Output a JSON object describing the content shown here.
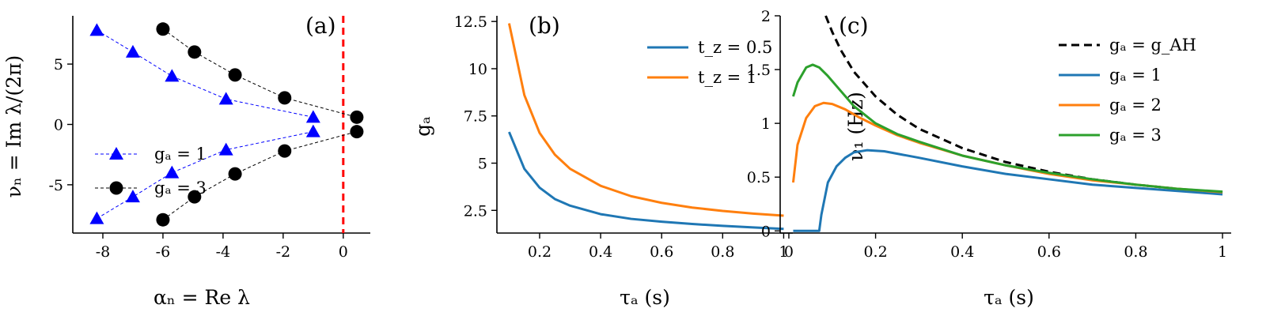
{
  "chart_data": [
    {
      "panel": "(a)",
      "type": "scatter",
      "xlabel": "αₙ = Re λ",
      "ylabel": "νₙ = Im λ/(2π)",
      "xlim": [
        -9,
        0.9
      ],
      "ylim": [
        -9,
        9
      ],
      "xticks": [
        -8,
        -6,
        -4,
        -2,
        0
      ],
      "xtick_labels": [
        "-8",
        "-6",
        "-4",
        "-2",
        "0"
      ],
      "yticks": [
        -5,
        0,
        5
      ],
      "ytick_labels": [
        "-5",
        "0",
        "5"
      ],
      "vline": {
        "x": 0,
        "color": "#ff0000",
        "style": "dashed"
      },
      "legend_position": "center-left",
      "series": [
        {
          "name": "gₐ = 1",
          "marker": "triangle",
          "color": "#0000ff",
          "linestyle": "dashed",
          "branches": [
            {
              "x": [
                -8.2,
                -7.0,
                -5.7,
                -3.9,
                -1.0
              ],
              "y": [
                7.8,
                6.0,
                4.0,
                2.1,
                0.6
              ]
            },
            {
              "x": [
                -8.2,
                -7.0,
                -5.7,
                -3.9,
                -1.0
              ],
              "y": [
                -7.8,
                -6.0,
                -4.0,
                -2.1,
                -0.6
              ]
            }
          ]
        },
        {
          "name": "gₐ = 3",
          "marker": "circle",
          "color": "#000000",
          "linestyle": "dashed",
          "branches": [
            {
              "x": [
                -6.0,
                -4.95,
                -3.6,
                -1.95,
                0.45
              ],
              "y": [
                7.9,
                6.0,
                4.1,
                2.2,
                0.6
              ]
            },
            {
              "x": [
                -6.0,
                -4.95,
                -3.6,
                -1.95,
                0.45
              ],
              "y": [
                -7.9,
                -6.0,
                -4.1,
                -2.2,
                -0.6
              ]
            }
          ]
        }
      ]
    },
    {
      "panel": "(b)",
      "type": "line",
      "xlabel": "τₐ (s)",
      "ylabel": "gₐ",
      "xlim": [
        0.06,
        1.03
      ],
      "ylim": [
        1.3,
        12.8
      ],
      "xticks": [
        0.2,
        0.4,
        0.6,
        0.8,
        1
      ],
      "xtick_labels": [
        "0.2",
        "0.4",
        "0.6",
        "0.8",
        "1"
      ],
      "yticks": [
        2.5,
        5,
        7.5,
        10,
        12.5
      ],
      "ytick_labels": [
        "2.5",
        "5",
        "7.5",
        "10",
        "12.5"
      ],
      "legend_position": "top-right",
      "x": [
        0.1,
        0.15,
        0.2,
        0.25,
        0.3,
        0.4,
        0.5,
        0.6,
        0.7,
        0.8,
        0.9,
        1.0
      ],
      "series": [
        {
          "name": "t_z = 0.5",
          "color": "#1f77b4",
          "values": [
            6.65,
            4.7,
            3.7,
            3.1,
            2.75,
            2.3,
            2.05,
            1.9,
            1.78,
            1.68,
            1.6,
            1.52
          ]
        },
        {
          "name": "t_z = 1",
          "color": "#ff7f0e",
          "values": [
            12.4,
            8.6,
            6.6,
            5.45,
            4.7,
            3.8,
            3.25,
            2.9,
            2.65,
            2.47,
            2.33,
            2.22
          ]
        }
      ]
    },
    {
      "panel": "(c)",
      "type": "line",
      "xlabel": "τₐ (s)",
      "ylabel": "ν₁ (Hz)",
      "xlim": [
        -0.02,
        1.02
      ],
      "ylim": [
        -0.02,
        2.0
      ],
      "xticks": [
        0,
        0.2,
        0.4,
        0.6,
        0.8,
        1
      ],
      "xtick_labels": [
        "0",
        "0.2",
        "0.4",
        "0.6",
        "0.8",
        "1"
      ],
      "yticks": [
        0,
        0.5,
        1,
        1.5,
        2
      ],
      "ytick_labels": [
        "0",
        "0.5",
        "1",
        "1.5",
        "2"
      ],
      "legend_position": "top-right",
      "series": [
        {
          "name": "gₐ = g_AH",
          "color": "#000000",
          "linestyle": "dashed",
          "x": [
            0.085,
            0.1,
            0.12,
            0.15,
            0.2,
            0.25,
            0.3,
            0.4,
            0.5,
            0.6,
            0.7,
            0.8,
            0.9,
            1.0
          ],
          "values": [
            2.0,
            1.85,
            1.68,
            1.48,
            1.25,
            1.08,
            0.95,
            0.77,
            0.64,
            0.55,
            0.48,
            0.43,
            0.39,
            0.355
          ]
        },
        {
          "name": "gₐ = 1",
          "color": "#1f77b4",
          "x": [
            0.01,
            0.05,
            0.07,
            0.075,
            0.09,
            0.11,
            0.13,
            0.15,
            0.18,
            0.22,
            0.26,
            0.3,
            0.4,
            0.5,
            0.6,
            0.7,
            0.8,
            0.9,
            1.0
          ],
          "values": [
            0.0,
            0.0,
            0.0,
            0.15,
            0.45,
            0.6,
            0.68,
            0.73,
            0.75,
            0.74,
            0.71,
            0.68,
            0.6,
            0.53,
            0.48,
            0.43,
            0.4,
            0.37,
            0.34
          ]
        },
        {
          "name": "gₐ = 2",
          "color": "#ff7f0e",
          "x": [
            0.01,
            0.02,
            0.04,
            0.06,
            0.08,
            0.1,
            0.13,
            0.16,
            0.2,
            0.25,
            0.3,
            0.4,
            0.5,
            0.6,
            0.7,
            0.8,
            0.9,
            1.0
          ],
          "values": [
            0.45,
            0.8,
            1.05,
            1.16,
            1.19,
            1.18,
            1.13,
            1.06,
            0.98,
            0.89,
            0.82,
            0.7,
            0.61,
            0.53,
            0.47,
            0.43,
            0.39,
            0.36
          ]
        },
        {
          "name": "gₐ = 3",
          "color": "#2ca02c",
          "x": [
            0.01,
            0.02,
            0.04,
            0.055,
            0.07,
            0.09,
            0.12,
            0.15,
            0.2,
            0.25,
            0.3,
            0.4,
            0.5,
            0.6,
            0.7,
            0.8,
            0.9,
            1.0
          ],
          "values": [
            1.25,
            1.38,
            1.52,
            1.545,
            1.52,
            1.44,
            1.3,
            1.16,
            1.0,
            0.9,
            0.83,
            0.7,
            0.61,
            0.54,
            0.48,
            0.43,
            0.39,
            0.365
          ]
        }
      ]
    }
  ]
}
